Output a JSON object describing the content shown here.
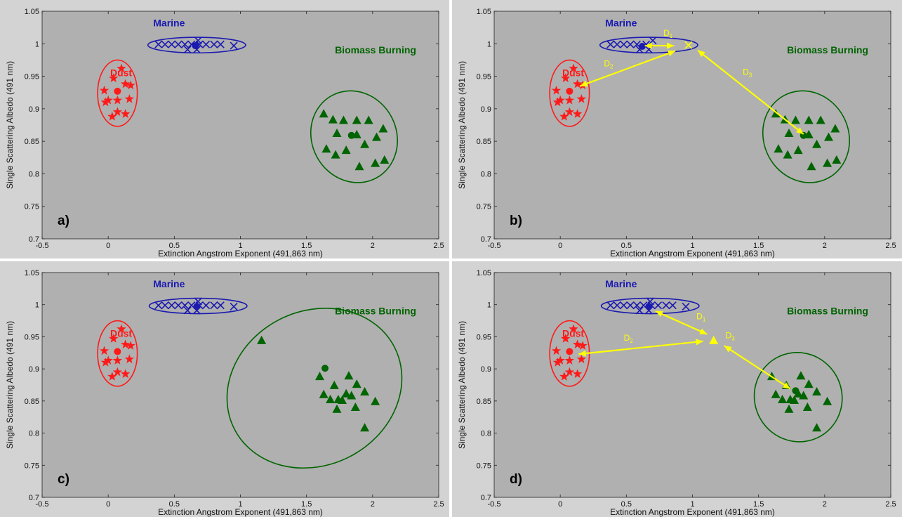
{
  "colors": {
    "figure_bg": "#d3d3d3",
    "axes_bg": "#b0b0b0",
    "dust": "#ff1a1a",
    "marine": "#1a1ab0",
    "biomass": "#006400",
    "distance": "#ffff00"
  },
  "chart_data": [
    {
      "type": "scatter",
      "panel_label": "a)",
      "xlabel": "Extinction Angstrom Exponent (491,863 nm)",
      "ylabel": "Single Scattering Albedo (491 nm)",
      "xlim": [
        -0.5,
        2.5
      ],
      "ylim": [
        0.7,
        1.05
      ],
      "xticks": [
        "-0.5",
        "0",
        "0.5",
        "1",
        "1.5",
        "2",
        "2.5"
      ],
      "yticks": [
        "0.7",
        "0.75",
        "0.8",
        "0.85",
        "0.9",
        "0.95",
        "1",
        "1.05"
      ],
      "grid": false,
      "series": [
        {
          "name": "Dust",
          "marker": "star",
          "color": "#ff1a1a",
          "x": [
            0.1,
            0.04,
            0.13,
            -0.03,
            0.17,
            0.0,
            0.07,
            -0.02,
            0.16,
            0.03,
            0.07,
            0.13
          ],
          "y": [
            0.962,
            0.947,
            0.938,
            0.928,
            0.936,
            0.913,
            0.913,
            0.91,
            0.915,
            0.888,
            0.895,
            0.892
          ],
          "centroid": [
            0.07,
            0.927
          ],
          "ellipse": {
            "cx": 0.07,
            "cy": 0.924,
            "rx": 0.15,
            "ry": 0.051
          }
        },
        {
          "name": "Marine",
          "marker": "x",
          "color": "#1a1ab0",
          "x": [
            0.38,
            0.43,
            0.48,
            0.53,
            0.58,
            0.63,
            0.69,
            0.74,
            0.8,
            0.85,
            0.95,
            0.6,
            0.67,
            0.68
          ],
          "y": [
            0.999,
            0.999,
            0.999,
            0.999,
            0.999,
            0.999,
            0.999,
            0.999,
            0.999,
            0.999,
            0.997,
            0.991,
            0.991,
            1.005
          ],
          "centroid": [
            0.66,
            0.997
          ],
          "ellipse": {
            "cx": 0.67,
            "cy": 0.998,
            "rx": 0.37,
            "ry": 0.012
          }
        },
        {
          "name": "Biomass Burning",
          "marker": "triangle",
          "color": "#006400",
          "x": [
            1.63,
            1.7,
            1.78,
            1.88,
            1.97,
            2.08,
            1.73,
            1.88,
            2.03,
            1.65,
            1.8,
            1.94,
            1.72,
            2.09,
            2.02,
            1.9
          ],
          "y": [
            0.892,
            0.883,
            0.882,
            0.882,
            0.882,
            0.869,
            0.862,
            0.86,
            0.856,
            0.838,
            0.836,
            0.845,
            0.829,
            0.821,
            0.816,
            0.811
          ],
          "centroid": [
            1.84,
            0.859
          ],
          "ellipse": {
            "cx": 1.86,
            "cy": 0.857,
            "rx": 0.32,
            "ry": 0.072,
            "angle": -28
          }
        }
      ],
      "annotations": []
    },
    {
      "type": "scatter",
      "panel_label": "b)",
      "xlabel": "Extinction Angstrom Exponent (491,863 nm)",
      "ylabel": "Single Scattering Albedo (491 nm)",
      "xlim": [
        -0.5,
        2.5
      ],
      "ylim": [
        0.7,
        1.05
      ],
      "xticks": [
        "-0.5",
        "0",
        "0.5",
        "1",
        "1.5",
        "2",
        "2.5"
      ],
      "yticks": [
        "0.7",
        "0.75",
        "0.8",
        "0.85",
        "0.9",
        "0.95",
        "1",
        "1.05"
      ],
      "grid": false,
      "series": [
        {
          "name": "Dust",
          "marker": "star",
          "color": "#ff1a1a",
          "x": [
            0.1,
            0.04,
            0.13,
            -0.03,
            0.17,
            0.0,
            0.07,
            -0.02,
            0.16,
            0.03,
            0.07,
            0.13
          ],
          "y": [
            0.962,
            0.947,
            0.938,
            0.928,
            0.936,
            0.913,
            0.913,
            0.91,
            0.915,
            0.888,
            0.895,
            0.892
          ],
          "centroid": [
            0.07,
            0.927
          ],
          "ellipse": {
            "cx": 0.07,
            "cy": 0.924,
            "rx": 0.15,
            "ry": 0.051
          }
        },
        {
          "name": "Marine",
          "marker": "x",
          "color": "#1a1ab0",
          "x": [
            0.38,
            0.43,
            0.48,
            0.53,
            0.58,
            0.65,
            0.7,
            0.6,
            0.67
          ],
          "y": [
            0.999,
            0.999,
            0.999,
            0.999,
            0.999,
            0.999,
            1.005,
            0.991,
            0.991
          ],
          "centroid": [
            0.62,
            0.996
          ],
          "ellipse": {
            "cx": 0.67,
            "cy": 0.998,
            "rx": 0.37,
            "ry": 0.012
          }
        },
        {
          "name": "Biomass Burning",
          "marker": "triangle",
          "color": "#006400",
          "x": [
            1.63,
            1.7,
            1.78,
            1.88,
            1.97,
            2.08,
            1.73,
            1.88,
            2.03,
            1.65,
            1.8,
            1.94,
            1.72,
            2.09,
            2.02,
            1.9
          ],
          "y": [
            0.892,
            0.883,
            0.882,
            0.882,
            0.882,
            0.869,
            0.862,
            0.86,
            0.856,
            0.838,
            0.836,
            0.845,
            0.829,
            0.821,
            0.816,
            0.811
          ],
          "centroid": [
            1.84,
            0.859
          ],
          "ellipse": {
            "cx": 1.86,
            "cy": 0.857,
            "rx": 0.32,
            "ry": 0.072,
            "angle": -28
          }
        }
      ],
      "test_point": {
        "marker": "x",
        "x": 0.97,
        "y": 0.998,
        "color": "#ffff00"
      },
      "annotations": [
        {
          "from": [
            0.64,
            0.997
          ],
          "to": [
            0.86,
            0.997
          ],
          "label": "D",
          "sub": "1",
          "label_at": [
            0.78,
            1.012
          ]
        },
        {
          "from": [
            0.15,
            0.935
          ],
          "to": [
            0.87,
            0.989
          ],
          "label": "D",
          "sub": "2",
          "label_at": [
            0.33,
            0.965
          ]
        },
        {
          "from": [
            1.04,
            0.99
          ],
          "to": [
            1.84,
            0.861
          ],
          "label": "D",
          "sub": "3",
          "label_at": [
            1.38,
            0.952
          ]
        }
      ]
    },
    {
      "type": "scatter",
      "panel_label": "c)",
      "xlabel": "Extinction Angstrom Exponent (491,863 nm)",
      "ylabel": "Single Scattering Albedo (491 nm)",
      "xlim": [
        -0.5,
        2.5
      ],
      "ylim": [
        0.7,
        1.05
      ],
      "xticks": [
        "-0.5",
        "0",
        "0.5",
        "1",
        "1.5",
        "2",
        "2.5"
      ],
      "yticks": [
        "0.7",
        "0.75",
        "0.8",
        "0.85",
        "0.9",
        "0.95",
        "1",
        "1.05"
      ],
      "grid": false,
      "series": [
        {
          "name": "Dust",
          "marker": "star",
          "color": "#ff1a1a",
          "x": [
            0.1,
            0.04,
            0.13,
            -0.03,
            0.17,
            0.0,
            0.07,
            -0.02,
            0.16,
            0.03,
            0.07,
            0.13
          ],
          "y": [
            0.962,
            0.947,
            0.938,
            0.928,
            0.936,
            0.913,
            0.913,
            0.91,
            0.915,
            0.888,
            0.895,
            0.892
          ],
          "centroid": [
            0.07,
            0.927
          ],
          "ellipse": {
            "cx": 0.07,
            "cy": 0.924,
            "rx": 0.15,
            "ry": 0.051
          }
        },
        {
          "name": "Marine",
          "marker": "x",
          "color": "#1a1ab0",
          "x": [
            0.38,
            0.43,
            0.48,
            0.53,
            0.58,
            0.63,
            0.69,
            0.74,
            0.8,
            0.85,
            0.95,
            0.6,
            0.67,
            0.68
          ],
          "y": [
            0.999,
            0.999,
            0.999,
            0.999,
            0.999,
            0.999,
            0.999,
            0.999,
            0.999,
            0.999,
            0.997,
            0.991,
            0.991,
            1.005
          ],
          "centroid": [
            0.67,
            0.997
          ],
          "ellipse": {
            "cx": 0.68,
            "cy": 0.998,
            "rx": 0.37,
            "ry": 0.012
          }
        },
        {
          "name": "Biomass Burning",
          "marker": "triangle",
          "color": "#006400",
          "x": [
            1.16,
            1.6,
            1.82,
            1.71,
            1.88,
            1.63,
            1.8,
            1.94,
            1.68,
            1.74,
            1.77,
            1.84,
            2.02,
            1.73,
            1.87,
            1.94
          ],
          "y": [
            0.944,
            0.888,
            0.889,
            0.874,
            0.876,
            0.86,
            0.861,
            0.864,
            0.852,
            0.852,
            0.851,
            0.858,
            0.849,
            0.837,
            0.84,
            0.808
          ],
          "centroid": [
            1.64,
            0.901
          ],
          "ellipse": {
            "cx": 1.56,
            "cy": 0.87,
            "rx": 0.68,
            "ry": 0.12,
            "angle": -27
          }
        }
      ],
      "annotations": []
    },
    {
      "type": "scatter",
      "panel_label": "d)",
      "xlabel": "Extinction Angstrom Exponent (491,863 nm)",
      "ylabel": "Single Scattering Albedo (491 nm)",
      "xlim": [
        -0.5,
        2.5
      ],
      "ylim": [
        0.7,
        1.05
      ],
      "xticks": [
        "-0.5",
        "0",
        "0.5",
        "1",
        "1.5",
        "2",
        "2.5"
      ],
      "yticks": [
        "0.7",
        "0.75",
        "0.8",
        "0.85",
        "0.9",
        "0.95",
        "1",
        "1.05"
      ],
      "grid": false,
      "series": [
        {
          "name": "Dust",
          "marker": "star",
          "color": "#ff1a1a",
          "x": [
            0.1,
            0.04,
            0.13,
            -0.03,
            0.17,
            0.0,
            0.07,
            -0.02,
            0.16,
            0.03,
            0.07,
            0.13
          ],
          "y": [
            0.962,
            0.947,
            0.938,
            0.928,
            0.936,
            0.913,
            0.913,
            0.91,
            0.915,
            0.888,
            0.895,
            0.892
          ],
          "centroid": [
            0.07,
            0.927
          ],
          "ellipse": {
            "cx": 0.07,
            "cy": 0.924,
            "rx": 0.15,
            "ry": 0.051
          }
        },
        {
          "name": "Marine",
          "marker": "x",
          "color": "#1a1ab0",
          "x": [
            0.38,
            0.43,
            0.48,
            0.53,
            0.58,
            0.63,
            0.69,
            0.74,
            0.8,
            0.85,
            0.95,
            0.6,
            0.67,
            0.68
          ],
          "y": [
            0.999,
            0.999,
            0.999,
            0.999,
            0.999,
            0.999,
            0.999,
            0.999,
            0.999,
            0.999,
            0.997,
            0.991,
            0.991,
            1.005
          ],
          "centroid": [
            0.67,
            0.997
          ],
          "ellipse": {
            "cx": 0.68,
            "cy": 0.998,
            "rx": 0.37,
            "ry": 0.012
          }
        },
        {
          "name": "Biomass Burning",
          "marker": "triangle",
          "color": "#006400",
          "x": [
            1.6,
            1.82,
            1.71,
            1.88,
            1.63,
            1.8,
            1.94,
            1.68,
            1.74,
            1.77,
            1.84,
            2.02,
            1.73,
            1.87,
            1.94
          ],
          "y": [
            0.888,
            0.889,
            0.874,
            0.876,
            0.86,
            0.861,
            0.864,
            0.852,
            0.852,
            0.851,
            0.858,
            0.849,
            0.837,
            0.84,
            0.808
          ],
          "centroid": [
            1.78,
            0.866
          ],
          "ellipse": {
            "cx": 1.8,
            "cy": 0.856,
            "rx": 0.33,
            "ry": 0.07,
            "angle": -30
          }
        }
      ],
      "test_point": {
        "marker": "triangle",
        "x": 1.16,
        "y": 0.944,
        "color": "#ffff00"
      },
      "annotations": [
        {
          "from": [
            0.72,
            0.99
          ],
          "to": [
            1.11,
            0.954
          ],
          "label": "D",
          "sub": "1",
          "label_at": [
            1.03,
            0.977
          ]
        },
        {
          "from": [
            0.14,
            0.923
          ],
          "to": [
            1.08,
            0.943
          ],
          "label": "D",
          "sub": "2",
          "label_at": [
            0.48,
            0.944
          ]
        },
        {
          "from": [
            1.24,
            0.936
          ],
          "to": [
            1.74,
            0.869
          ],
          "label": "D",
          "sub": "3",
          "label_at": [
            1.25,
            0.948
          ]
        }
      ]
    }
  ]
}
